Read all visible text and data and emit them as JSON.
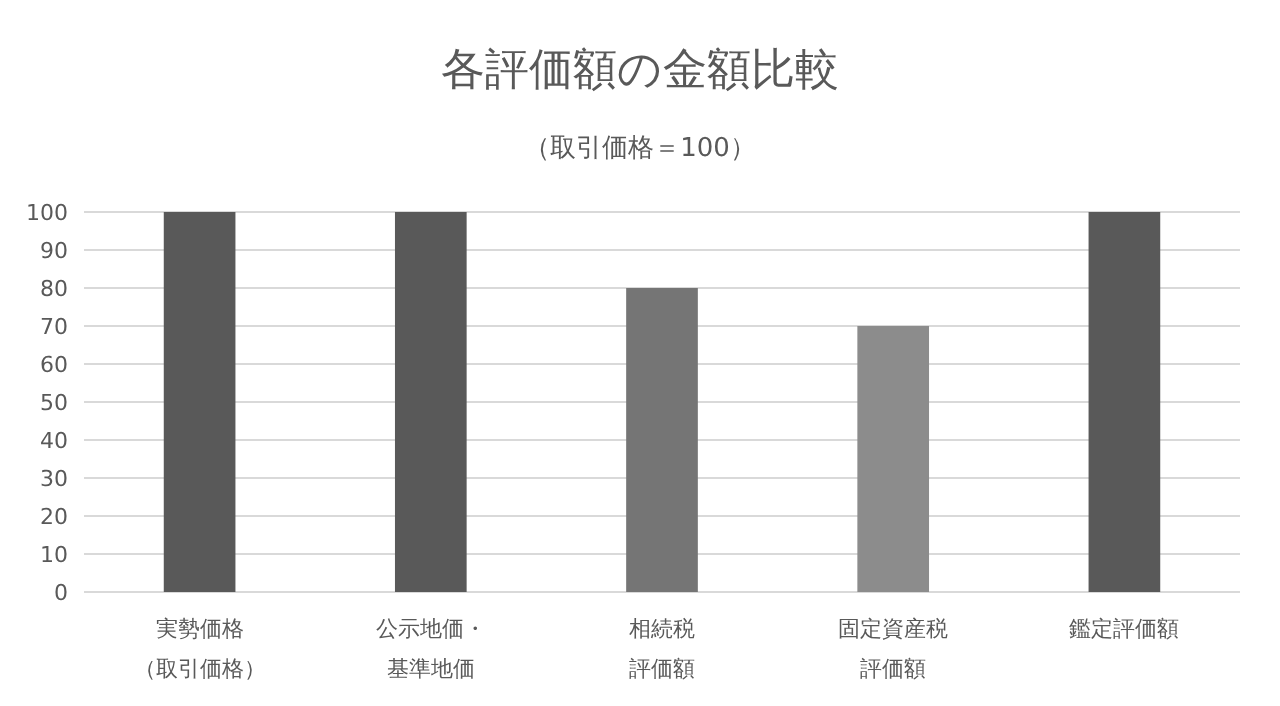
{
  "chart_data": {
    "type": "bar",
    "title": "各評価額の金額比較",
    "subtitle": "（取引価格＝100）",
    "categories": [
      "実勢価格（取引価格）",
      "公示地価・基準地価",
      "相続税評価額",
      "固定資産税評価額",
      "鑑定評価額"
    ],
    "values": [
      100,
      100,
      80,
      70,
      100
    ],
    "colors": [
      "#595959",
      "#595959",
      "#757575",
      "#8c8c8c",
      "#595959"
    ],
    "ylim": [
      0,
      100
    ],
    "yticks": [
      0,
      10,
      20,
      30,
      40,
      50,
      60,
      70,
      80,
      90,
      100
    ],
    "grid": "y"
  }
}
